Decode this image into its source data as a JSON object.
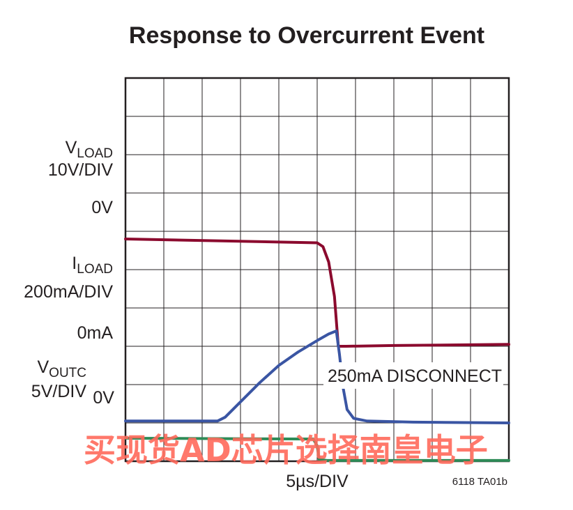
{
  "chart_data": {
    "type": "line",
    "title": "Response to Overcurrent Event",
    "xlabel": "5µs/DIV",
    "figure_id": "6118 TA01b",
    "grid": true,
    "x_divisions": 10,
    "y_divisions": 10,
    "x_unit": "div",
    "annotation": "250mA DISCONNECT",
    "channels": [
      {
        "name_main": "V",
        "name_sub": "LOAD",
        "scale": "10V/DIV",
        "zero_label": "0V"
      },
      {
        "name_main": "I",
        "name_sub": "LOAD",
        "scale": "200mA/DIV",
        "zero_label": "0mA"
      },
      {
        "name_main": "V",
        "name_sub": "OUTC",
        "scale": "5V/DIV",
        "zero_label": "0V"
      }
    ],
    "series": [
      {
        "key": "vload",
        "color": "#8b0a2e",
        "x": [
          0,
          5.0,
          5.15,
          5.3,
          5.45,
          5.55,
          5.6,
          5.75,
          7.0,
          10.0
        ],
        "y": [
          5.8,
          5.7,
          5.6,
          5.2,
          4.3,
          3.0,
          3.0,
          3.0,
          3.02,
          3.05
        ]
      },
      {
        "key": "iload",
        "color": "#3a55a3",
        "x": [
          0,
          2.4,
          2.6,
          3.0,
          3.5,
          4.0,
          4.5,
          5.0,
          5.3,
          5.5,
          5.58,
          5.68,
          5.78,
          5.95,
          6.3,
          7.5,
          10.0
        ],
        "y": [
          1.05,
          1.05,
          1.15,
          1.55,
          2.05,
          2.5,
          2.85,
          3.15,
          3.32,
          3.4,
          2.8,
          1.9,
          1.35,
          1.12,
          1.05,
          1.02,
          1.0
        ],
        "disconnect_current": "250mA"
      },
      {
        "key": "voutc",
        "color": "#2e8b57",
        "x": [
          0,
          4.9,
          5.0,
          5.05,
          5.25,
          10.0
        ],
        "y": [
          0.6,
          0.58,
          0.4,
          0.05,
          0.02,
          0.02
        ]
      }
    ]
  },
  "watermark": "买现货AD芯片选择南皇电子"
}
